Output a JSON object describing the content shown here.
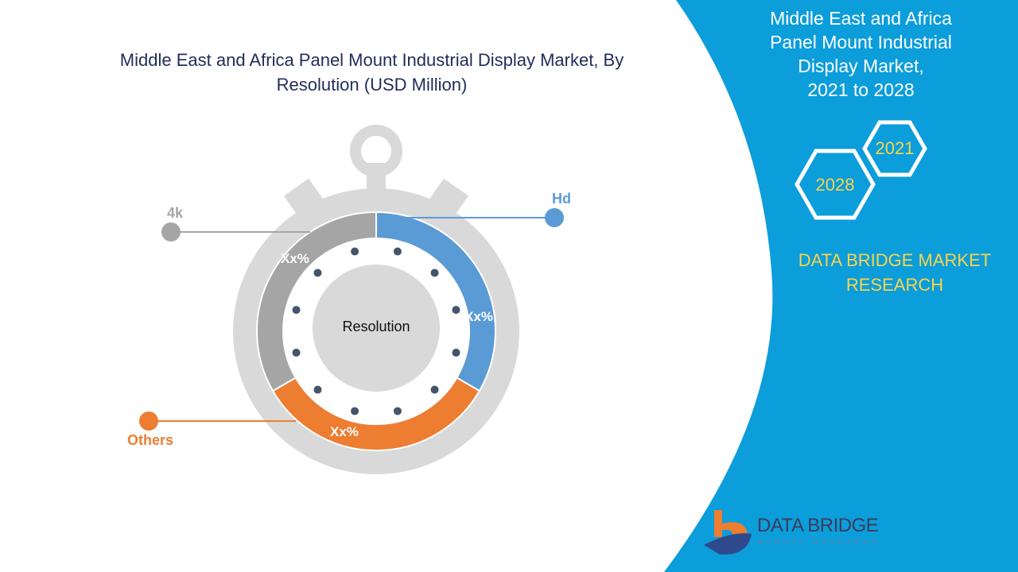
{
  "title": "Middle East and Africa Panel Mount Industrial Display Market, By Resolution (USD Million)",
  "side_panel": {
    "title_lines": [
      "Middle East and Africa",
      "Panel Mount Industrial",
      "Display Market,",
      "2021 to 2028"
    ],
    "years": [
      "2021",
      "2028"
    ],
    "brand_lines": [
      "DATA BRIDGE MARKET",
      "RESEARCH"
    ],
    "logo_text": "DATA BRIDGE",
    "logo_sub": "MARKET RESEARCH"
  },
  "colors": {
    "panel": "#0c9ddb",
    "hd": "#5b9bd5",
    "others": "#ed7d31",
    "4k": "#a5a5a5",
    "ring": "#d9d9d9",
    "dots": "#44546a",
    "accent_text": "#f7d54a"
  },
  "chart_data": {
    "type": "pie",
    "center_label": "Resolution",
    "categories": [
      "Hd",
      "Others",
      "4k"
    ],
    "values": [
      33.3,
      33.3,
      33.3
    ],
    "data_labels": [
      "Xx%",
      "Xx%",
      "Xx%"
    ]
  }
}
